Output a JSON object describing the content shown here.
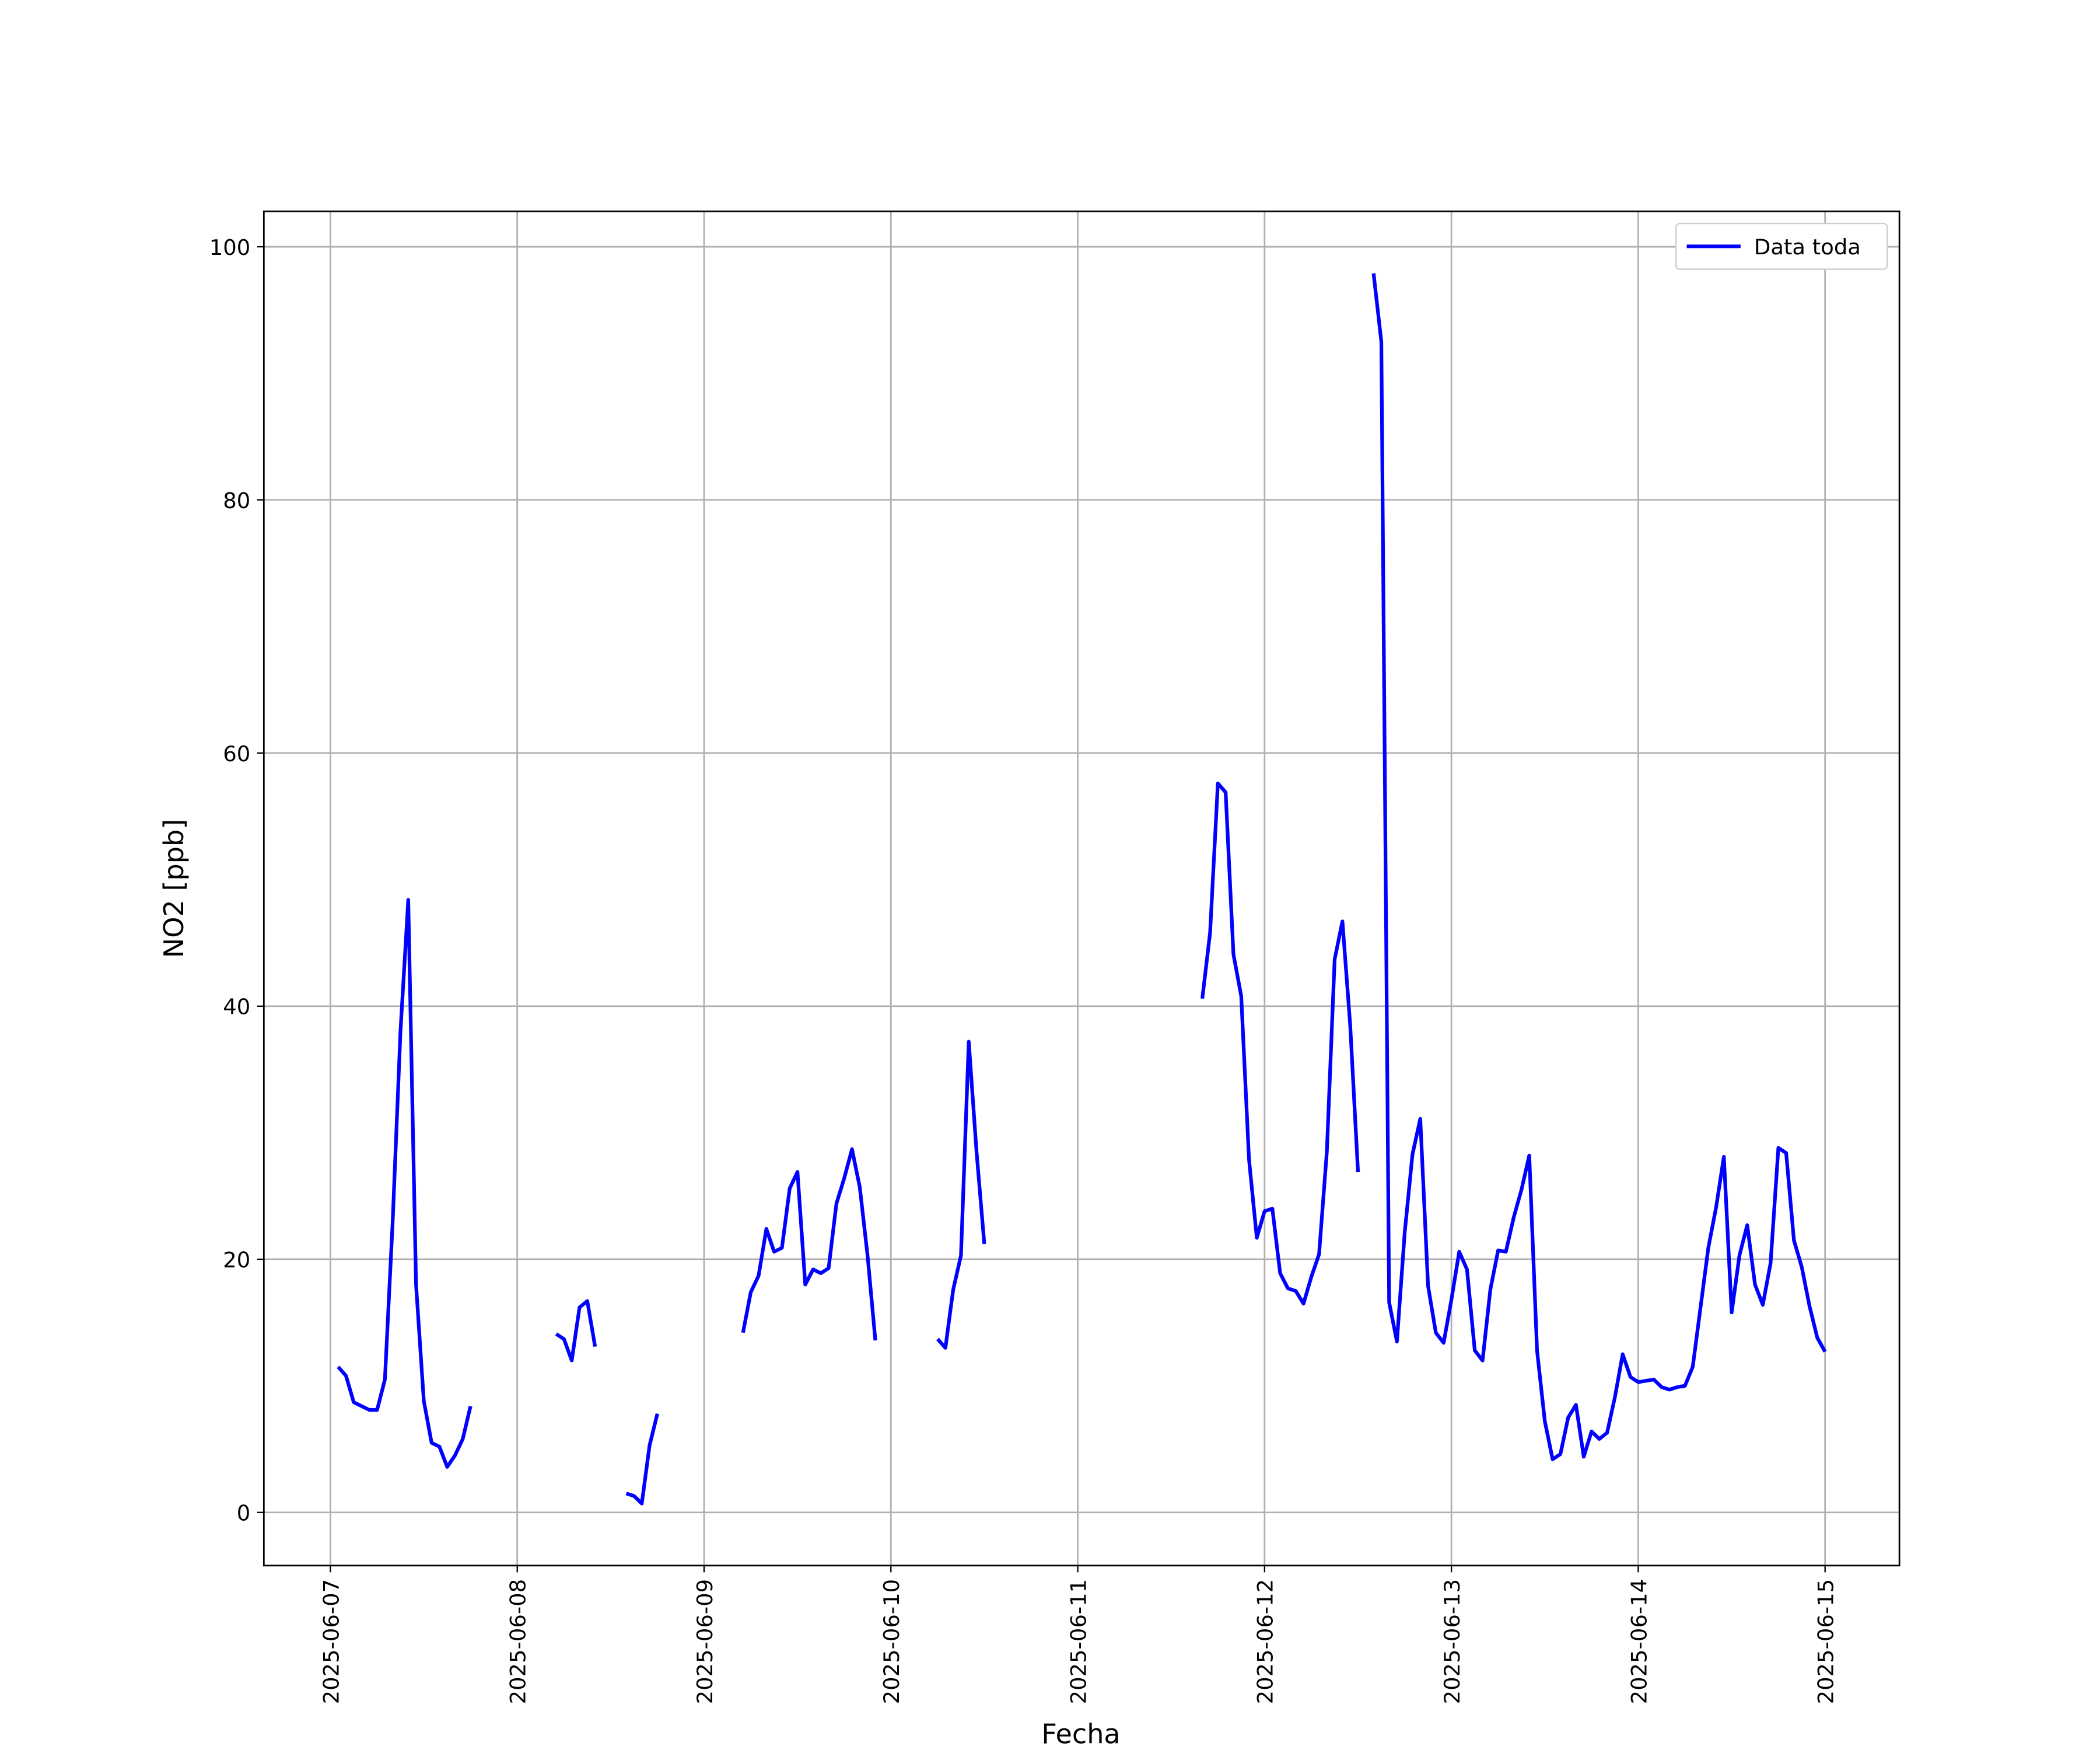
{
  "chart_data": {
    "type": "line",
    "x_label": "Fecha",
    "y_label": "NO2 [ppb]",
    "x": [
      "2025-06-07T01:00",
      "2025-06-07T02:00",
      "2025-06-07T03:00",
      "2025-06-07T04:00",
      "2025-06-07T05:00",
      "2025-06-07T06:00",
      "2025-06-07T07:00",
      "2025-06-07T08:00",
      "2025-06-07T09:00",
      "2025-06-07T10:00",
      "2025-06-07T11:00",
      "2025-06-07T12:00",
      "2025-06-07T13:00",
      "2025-06-07T14:00",
      "2025-06-07T15:00",
      "2025-06-07T16:00",
      "2025-06-07T17:00",
      "2025-06-07T18:00",
      "2025-06-07T19:00",
      "2025-06-08T05:00",
      "2025-06-08T06:00",
      "2025-06-08T07:00",
      "2025-06-08T08:00",
      "2025-06-08T09:00",
      "2025-06-08T10:00",
      "2025-06-08T11:00",
      "2025-06-08T14:00",
      "2025-06-08T15:00",
      "2025-06-08T16:00",
      "2025-06-08T17:00",
      "2025-06-08T18:00",
      "2025-06-08T19:00",
      "2025-06-09T05:00",
      "2025-06-09T06:00",
      "2025-06-09T07:00",
      "2025-06-09T08:00",
      "2025-06-09T09:00",
      "2025-06-09T10:00",
      "2025-06-09T11:00",
      "2025-06-09T12:00",
      "2025-06-09T13:00",
      "2025-06-09T14:00",
      "2025-06-09T15:00",
      "2025-06-09T16:00",
      "2025-06-09T17:00",
      "2025-06-09T18:00",
      "2025-06-09T19:00",
      "2025-06-09T20:00",
      "2025-06-09T21:00",
      "2025-06-09T22:00",
      "2025-06-09T23:00",
      "2025-06-10T06:00",
      "2025-06-10T07:00",
      "2025-06-10T08:00",
      "2025-06-10T09:00",
      "2025-06-10T10:00",
      "2025-06-10T11:00",
      "2025-06-10T12:00",
      "2025-06-10T13:00",
      "2025-06-11T16:00",
      "2025-06-11T17:00",
      "2025-06-11T18:00",
      "2025-06-11T19:00",
      "2025-06-11T20:00",
      "2025-06-11T21:00",
      "2025-06-11T22:00",
      "2025-06-11T23:00",
      "2025-06-12T00:00",
      "2025-06-12T01:00",
      "2025-06-12T02:00",
      "2025-06-12T03:00",
      "2025-06-12T04:00",
      "2025-06-12T05:00",
      "2025-06-12T06:00",
      "2025-06-12T07:00",
      "2025-06-12T08:00",
      "2025-06-12T09:00",
      "2025-06-12T10:00",
      "2025-06-12T11:00",
      "2025-06-12T12:00",
      "2025-06-12T13:00",
      "2025-06-12T14:00",
      "2025-06-12T15:00",
      "2025-06-12T16:00",
      "2025-06-12T17:00",
      "2025-06-12T18:00",
      "2025-06-12T19:00",
      "2025-06-12T20:00",
      "2025-06-12T21:00",
      "2025-06-12T22:00",
      "2025-06-12T23:00",
      "2025-06-13T00:00",
      "2025-06-13T01:00",
      "2025-06-13T02:00",
      "2025-06-13T03:00",
      "2025-06-13T04:00",
      "2025-06-13T05:00",
      "2025-06-13T06:00",
      "2025-06-13T07:00",
      "2025-06-13T08:00",
      "2025-06-13T09:00",
      "2025-06-13T10:00",
      "2025-06-13T11:00",
      "2025-06-13T12:00",
      "2025-06-13T13:00",
      "2025-06-13T14:00",
      "2025-06-13T15:00",
      "2025-06-13T16:00",
      "2025-06-13T17:00",
      "2025-06-13T18:00",
      "2025-06-13T19:00",
      "2025-06-13T20:00",
      "2025-06-13T21:00",
      "2025-06-13T22:00",
      "2025-06-13T23:00",
      "2025-06-14T00:00",
      "2025-06-14T01:00",
      "2025-06-14T02:00",
      "2025-06-14T03:00",
      "2025-06-14T04:00",
      "2025-06-14T05:00",
      "2025-06-14T06:00",
      "2025-06-14T07:00",
      "2025-06-14T08:00",
      "2025-06-14T09:00",
      "2025-06-14T10:00",
      "2025-06-14T11:00",
      "2025-06-14T12:00",
      "2025-06-14T13:00",
      "2025-06-14T14:00",
      "2025-06-14T15:00",
      "2025-06-14T16:00",
      "2025-06-14T17:00",
      "2025-06-14T18:00",
      "2025-06-14T19:00",
      "2025-06-14T20:00",
      "2025-06-14T21:00",
      "2025-06-14T22:00",
      "2025-06-14T23:00",
      "2025-06-15T00:00"
    ],
    "series": [
      {
        "name": "Data toda",
        "color": "#0000ff",
        "values": [
          11.5,
          10.8,
          8.7,
          8.4,
          8.1,
          8.1,
          10.5,
          23,
          38,
          48.4,
          18,
          8.8,
          5.5,
          5.2,
          3.6,
          4.5,
          5.8,
          8.4,
          null,
          14.1,
          13.7,
          12.0,
          16.2,
          16.7,
          13.1,
          null,
          1.5,
          1.3,
          0.7,
          5.3,
          7.8,
          null,
          14.2,
          17.4,
          18.7,
          22.4,
          20.6,
          20.9,
          25.6,
          26.9,
          18.0,
          19.2,
          18.9,
          19.3,
          24.4,
          26.4,
          28.7,
          25.7,
          20.3,
          13.6,
          null,
          13.7,
          13.0,
          17.6,
          20.3,
          37.2,
          28.5,
          21.2,
          null,
          40.6,
          45.8,
          57.6,
          56.9,
          44.1,
          40.8,
          27.9,
          21.7,
          23.8,
          24.0,
          18.9,
          17.7,
          17.5,
          16.5,
          18.6,
          20.4,
          28.5,
          43.7,
          46.7,
          38.5,
          26.9,
          null,
          97.9,
          92.5,
          16.6,
          13.5,
          22.1,
          28.3,
          31.1,
          17.9,
          14.2,
          13.4,
          16.8,
          20.6,
          19.2,
          12.8,
          12.0,
          17.6,
          20.7,
          20.6,
          23.3,
          25.5,
          28.2,
          12.8,
          7.2,
          4.2,
          4.6,
          7.5,
          8.5,
          4.4,
          6.4,
          5.8,
          6.3,
          9.1,
          12.5,
          10.7,
          10.3,
          10.4,
          10.5,
          9.9,
          9.7,
          9.9,
          10.0,
          11.5,
          16.2,
          20.9,
          24.1,
          28.1,
          15.8,
          20.3,
          22.7,
          18.0,
          16.4,
          19.7,
          28.8,
          28.4,
          21.5,
          19.4,
          16.3,
          13.8,
          12.7
        ]
      }
    ],
    "xlim": [
      "2025-06-06T15:27",
      "2025-06-15T09:33"
    ],
    "xticks": [
      "2025-06-07",
      "2025-06-08",
      "2025-06-09",
      "2025-06-10",
      "2025-06-11",
      "2025-06-12",
      "2025-06-13",
      "2025-06-14",
      "2025-06-15"
    ],
    "ylim": [
      -4.2,
      102.8
    ],
    "yticks": [
      0,
      20,
      40,
      60,
      80,
      100
    ],
    "grid": true,
    "legend": "upper right"
  }
}
